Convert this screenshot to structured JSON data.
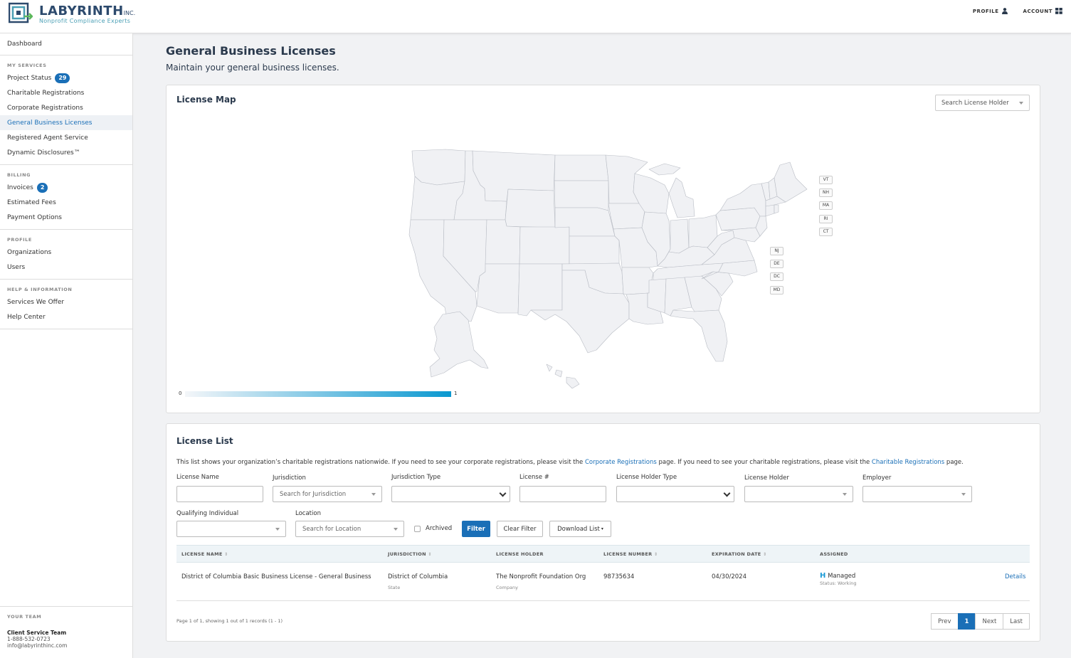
{
  "header": {
    "brand_name": "LABYRINTH",
    "brand_suffix": "INC.",
    "tagline": "Nonprofit Compliance Experts",
    "profile_label": "PROFILE",
    "account_label": "ACCOUNT"
  },
  "sidebar": {
    "dashboard": "Dashboard",
    "my_services_title": "MY SERVICES",
    "project_status": "Project Status",
    "project_status_count": "29",
    "charitable": "Charitable Registrations",
    "corporate": "Corporate Registrations",
    "general_business": "General Business Licenses",
    "registered_agent": "Registered Agent Service",
    "dynamic_disclosures": "Dynamic Disclosures™",
    "billing_title": "BILLING",
    "invoices": "Invoices",
    "invoices_count": "2",
    "estimated_fees": "Estimated Fees",
    "payment_options": "Payment Options",
    "profile_title": "PROFILE",
    "organizations": "Organizations",
    "users": "Users",
    "help_title": "HELP & INFORMATION",
    "services_offer": "Services We Offer",
    "help_center": "Help Center",
    "team_title": "YOUR TEAM",
    "team_name": "Client Service Team",
    "team_phone": "1-888-532-0723",
    "team_email": "info@labyrinthinc.com"
  },
  "page": {
    "title": "General Business Licenses",
    "subtitle": "Maintain your general business licenses."
  },
  "map": {
    "title": "License Map",
    "holder_placeholder": "Search License Holder",
    "legend_min": "0",
    "legend_max": "1",
    "small_states_right": [
      "VT",
      "NH",
      "MA",
      "RI",
      "CT"
    ],
    "small_states_left": [
      "NJ",
      "DE",
      "DC",
      "MD"
    ],
    "fill_color": "#f0f1f4",
    "stroke_color": "#b8bcc4"
  },
  "list": {
    "title": "License List",
    "intro_before": "This list shows your organization’s charitable registrations nationwide. If you need to see your corporate registrations, please visit the ",
    "intro_link1": "Corporate Registrations",
    "intro_middle": " page. If you need to see your charitable registrations, please visit the ",
    "intro_link2": "Charitable Registrations",
    "intro_after": " page.",
    "filters": {
      "license_name": "License Name",
      "jurisdiction": "Jurisdiction",
      "jurisdiction_placeholder": "Search for Jurisdiction",
      "jurisdiction_type": "Jurisdiction Type",
      "license_no": "License #",
      "holder_type": "License Holder Type",
      "holder": "License Holder",
      "employer": "Employer",
      "qualifying": "Qualifying Individual",
      "location": "Location",
      "location_placeholder": "Search for Location",
      "archived": "Archived",
      "filter_btn": "Filter",
      "clear_btn": "Clear Filter",
      "download_btn": "Download List"
    },
    "columns": {
      "name": "LICENSE NAME",
      "jurisdiction": "JURISDICTION",
      "holder": "LICENSE HOLDER",
      "number": "LICENSE NUMBER",
      "expiration": "EXPIRATION DATE",
      "assigned": "ASSIGNED"
    },
    "rows": [
      {
        "name": "District of Columbia Basic Business License - General Business",
        "jurisdiction": "District of Columbia",
        "jurisdiction_type": "State",
        "holder": "The Nonprofit Foundation Org",
        "holder_type": "Company",
        "number": "98735634",
        "expiration": "04/30/2024",
        "assigned_icon": "H",
        "assigned": "Managed",
        "status": "Status: Working",
        "details": "Details"
      }
    ],
    "page_info": "Page 1 of 1, showing 1 out of 1 records (1 - 1)",
    "pager": {
      "prev": "Prev",
      "current": "1",
      "next": "Next",
      "last": "Last"
    }
  }
}
